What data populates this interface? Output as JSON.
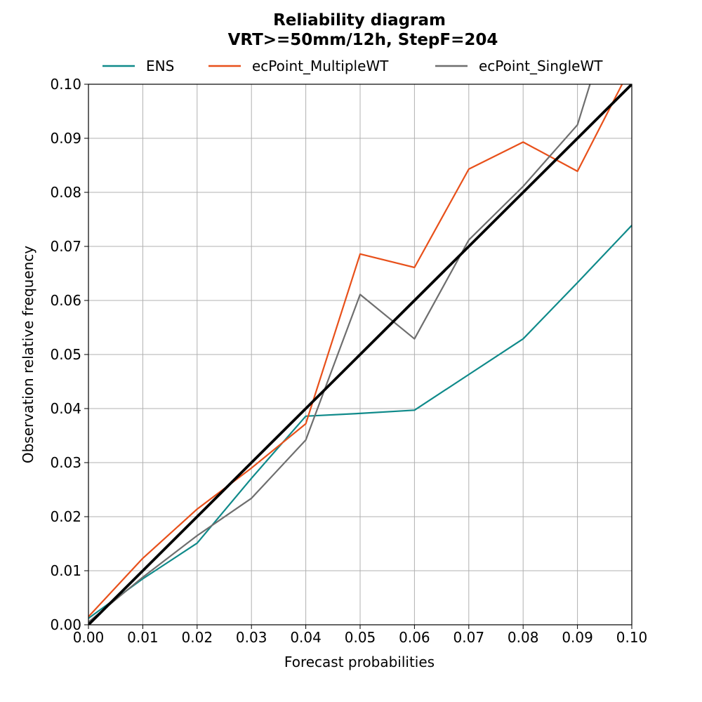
{
  "chart_data": {
    "type": "line",
    "title": "Reliability diagram",
    "subtitle": "VRT>=50mm/12h, StepF=204",
    "xlabel": "Forecast probabilities",
    "ylabel": "Observation relative frequency",
    "xlim": [
      0.0,
      0.1
    ],
    "ylim": [
      0.0,
      0.1
    ],
    "xticks": [
      "0.00",
      "0.01",
      "0.02",
      "0.03",
      "0.04",
      "0.05",
      "0.06",
      "0.07",
      "0.08",
      "0.09",
      "0.10"
    ],
    "yticks": [
      "0.00",
      "0.01",
      "0.02",
      "0.03",
      "0.04",
      "0.05",
      "0.06",
      "0.07",
      "0.08",
      "0.09",
      "0.10"
    ],
    "grid": true,
    "legend_position": "top-center",
    "series": [
      {
        "name": "ENS",
        "color": "#0f8a8a",
        "x": [
          0.0,
          0.01,
          0.02,
          0.03,
          0.04,
          0.05,
          0.06,
          0.07,
          0.08,
          0.09,
          0.1
        ],
        "y": [
          0.0012,
          0.0085,
          0.0151,
          0.0271,
          0.0386,
          0.0391,
          0.0397,
          0.0463,
          0.0529,
          0.0633,
          0.0739
        ]
      },
      {
        "name": "ecPoint_MultipleWT",
        "color": "#e8501a",
        "x": [
          0.0,
          0.01,
          0.02,
          0.03,
          0.04,
          0.05,
          0.06,
          0.07,
          0.08,
          0.09,
          0.1
        ],
        "y": [
          0.0015,
          0.0123,
          0.0214,
          0.029,
          0.0372,
          0.0686,
          0.0661,
          0.0843,
          0.0893,
          0.0839,
          0.1035
        ]
      },
      {
        "name": "ecPoint_SingleWT",
        "color": "#6e6e6e",
        "x": [
          0.0,
          0.01,
          0.02,
          0.03,
          0.04,
          0.05,
          0.06,
          0.07,
          0.08,
          0.09,
          0.1
        ],
        "y": [
          0.0005,
          0.0088,
          0.0165,
          0.0234,
          0.0342,
          0.0611,
          0.0529,
          0.0712,
          0.0811,
          0.0925,
          0.125
        ]
      }
    ],
    "reference_line": {
      "color": "#000000",
      "x": [
        0.0,
        0.1
      ],
      "y": [
        0.0,
        0.1
      ]
    }
  }
}
